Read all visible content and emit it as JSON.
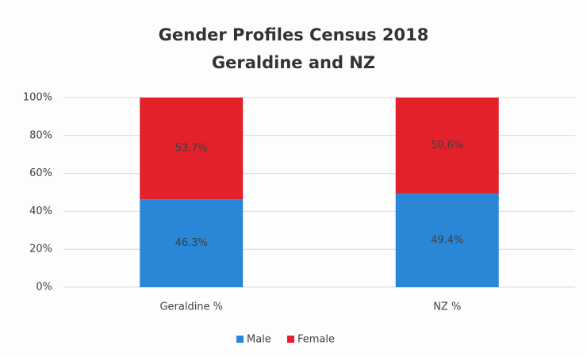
{
  "chart_data": {
    "type": "stacked_bar",
    "title": "Gender Profiles Census 2018",
    "subtitle": "Geraldine and NZ",
    "categories": [
      "Geraldine %",
      "NZ %"
    ],
    "series": [
      {
        "name": "Male",
        "color": "#2a86d6",
        "values": [
          46.3,
          49.4
        ],
        "value_labels": [
          "46.3%",
          "49.4%"
        ]
      },
      {
        "name": "Female",
        "color": "#e3212b",
        "values": [
          53.7,
          50.6
        ],
        "value_labels": [
          "53.7%",
          "50.6%"
        ]
      }
    ],
    "ylim": [
      0,
      100
    ],
    "yticks": [
      {
        "value": 0,
        "label": "0%"
      },
      {
        "value": 20,
        "label": "20%"
      },
      {
        "value": 40,
        "label": "40%"
      },
      {
        "value": 60,
        "label": "60%"
      },
      {
        "value": 80,
        "label": "80%"
      },
      {
        "value": 100,
        "label": "100%"
      }
    ],
    "grid": true,
    "legend": "bottom"
  }
}
